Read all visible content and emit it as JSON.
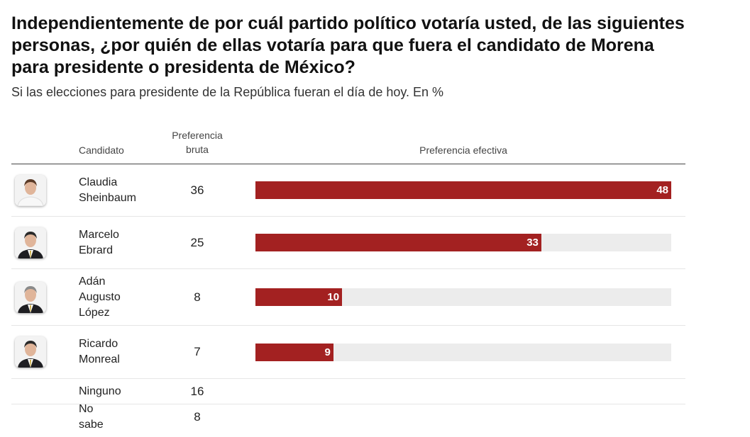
{
  "title": "Independientemente de por cuál partido político votaría usted, de las siguientes personas, ¿por quién de ellas votaría para que fuera el candidato de Morena para presidente o presidenta de México?",
  "subtitle": "Si las elecciones para presidente de la República fueran el día de hoy. En %",
  "chart_data": {
    "type": "bar",
    "columns": {
      "candidate": "Candidato",
      "raw": "Preferencia bruta",
      "effective": "Preferencia efectiva"
    },
    "rows": [
      {
        "name": "Claudia Sheinbaum",
        "raw": 36,
        "effective": 48,
        "icon": "candidate-photo-woman"
      },
      {
        "name": "Marcelo Ebrard",
        "raw": 25,
        "effective": 33,
        "icon": "candidate-photo-man"
      },
      {
        "name": "Adán Augusto López",
        "raw": 8,
        "effective": 10,
        "icon": "candidate-photo-man"
      },
      {
        "name": "Ricardo Monreal",
        "raw": 7,
        "effective": 9,
        "icon": "candidate-photo-man"
      },
      {
        "name": "Ninguno",
        "raw": 16
      },
      {
        "name": "No sabe",
        "raw": 8
      }
    ],
    "bar_max": 48,
    "colors": {
      "bar": "#a32121",
      "track": "#ececec"
    }
  }
}
